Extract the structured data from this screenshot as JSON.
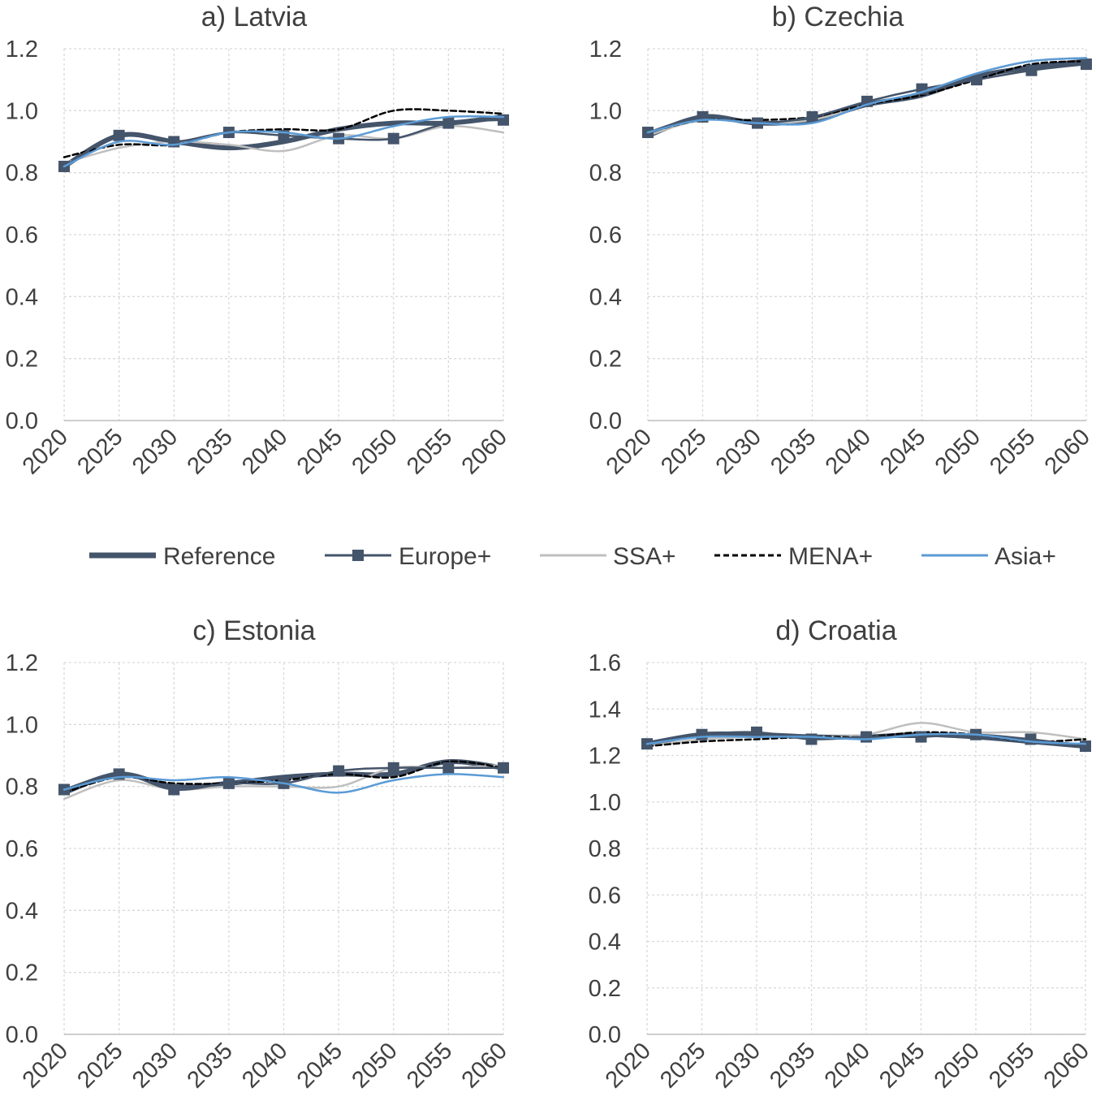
{
  "legend": [
    {
      "name": "Reference",
      "color": "#44546a",
      "style": "thick"
    },
    {
      "name": "Europe+",
      "color": "#44546a",
      "style": "square-marker"
    },
    {
      "name": "SSA+",
      "color": "#bfbfbf",
      "style": "solid"
    },
    {
      "name": "MENA+",
      "color": "#000000",
      "style": "dashed"
    },
    {
      "name": "Asia+",
      "color": "#5b9bd5",
      "style": "solid"
    }
  ],
  "chart_data": [
    {
      "type": "line",
      "title": "a) Latvia",
      "x": [
        "2020",
        "2025",
        "2030",
        "2035",
        "2040",
        "2045",
        "2050",
        "2055",
        "2060"
      ],
      "ylim": [
        0,
        1.2
      ],
      "yticks": [
        "0.0",
        "0.2",
        "0.4",
        "0.6",
        "0.8",
        "1.0",
        "1.2"
      ],
      "grid": true,
      "series": [
        {
          "name": "Reference",
          "values": [
            0.82,
            0.92,
            0.9,
            0.88,
            0.9,
            0.94,
            0.96,
            0.96,
            0.98
          ]
        },
        {
          "name": "Europe+",
          "values": [
            0.82,
            0.92,
            0.9,
            0.93,
            0.92,
            0.91,
            0.91,
            0.96,
            0.97
          ]
        },
        {
          "name": "SSA+",
          "values": [
            0.83,
            0.88,
            0.9,
            0.89,
            0.87,
            0.92,
            0.91,
            0.95,
            0.93
          ]
        },
        {
          "name": "MENA+",
          "values": [
            0.85,
            0.89,
            0.89,
            0.93,
            0.94,
            0.94,
            1.0,
            1.0,
            0.99
          ]
        },
        {
          "name": "Asia+",
          "values": [
            0.82,
            0.9,
            0.89,
            0.93,
            0.93,
            0.91,
            0.95,
            0.98,
            0.98
          ]
        }
      ]
    },
    {
      "type": "line",
      "title": "b) Czechia",
      "x": [
        "2020",
        "2025",
        "2030",
        "2035",
        "2040",
        "2045",
        "2050",
        "2055",
        "2060"
      ],
      "ylim": [
        0,
        1.2
      ],
      "yticks": [
        "0.0",
        "0.2",
        "0.4",
        "0.6",
        "0.8",
        "1.0",
        "1.2"
      ],
      "grid": true,
      "series": [
        {
          "name": "Reference",
          "values": [
            0.92,
            0.98,
            0.96,
            0.97,
            1.02,
            1.05,
            1.11,
            1.14,
            1.16
          ]
        },
        {
          "name": "Europe+",
          "values": [
            0.93,
            0.98,
            0.96,
            0.98,
            1.03,
            1.07,
            1.1,
            1.13,
            1.15
          ]
        },
        {
          "name": "SSA+",
          "values": [
            0.92,
            0.97,
            0.96,
            0.97,
            1.02,
            1.06,
            1.12,
            1.16,
            1.17
          ]
        },
        {
          "name": "MENA+",
          "values": [
            0.93,
            0.97,
            0.97,
            0.98,
            1.02,
            1.05,
            1.1,
            1.15,
            1.16
          ]
        },
        {
          "name": "Asia+",
          "values": [
            0.93,
            0.97,
            0.96,
            0.96,
            1.02,
            1.06,
            1.12,
            1.16,
            1.17
          ]
        }
      ]
    },
    {
      "type": "line",
      "title": "c) Estonia",
      "x": [
        "2020",
        "2025",
        "2030",
        "2035",
        "2040",
        "2045",
        "2050",
        "2055",
        "2060"
      ],
      "ylim": [
        0,
        1.2
      ],
      "yticks": [
        "0.0",
        "0.2",
        "0.4",
        "0.6",
        "0.8",
        "1.0",
        "1.2"
      ],
      "grid": true,
      "series": [
        {
          "name": "Reference",
          "values": [
            0.78,
            0.84,
            0.8,
            0.81,
            0.83,
            0.84,
            0.84,
            0.88,
            0.86
          ]
        },
        {
          "name": "Europe+",
          "values": [
            0.79,
            0.84,
            0.79,
            0.81,
            0.81,
            0.85,
            0.86,
            0.86,
            0.86
          ]
        },
        {
          "name": "SSA+",
          "values": [
            0.76,
            0.82,
            0.79,
            0.8,
            0.8,
            0.8,
            0.86,
            0.86,
            0.87
          ]
        },
        {
          "name": "MENA+",
          "values": [
            0.78,
            0.83,
            0.81,
            0.81,
            0.82,
            0.84,
            0.83,
            0.88,
            0.86
          ]
        },
        {
          "name": "Asia+",
          "values": [
            0.79,
            0.83,
            0.82,
            0.83,
            0.81,
            0.78,
            0.82,
            0.84,
            0.83
          ]
        }
      ]
    },
    {
      "type": "line",
      "title": "d) Croatia",
      "x": [
        "2020",
        "2025",
        "2030",
        "2035",
        "2040",
        "2045",
        "2050",
        "2055",
        "2060"
      ],
      "ylim": [
        0,
        1.6
      ],
      "yticks": [
        "0.0",
        "0.2",
        "0.4",
        "0.6",
        "0.8",
        "1.0",
        "1.2",
        "1.4",
        "1.6"
      ],
      "grid": true,
      "series": [
        {
          "name": "Reference",
          "values": [
            1.25,
            1.29,
            1.29,
            1.28,
            1.28,
            1.29,
            1.28,
            1.26,
            1.24
          ]
        },
        {
          "name": "Europe+",
          "values": [
            1.25,
            1.29,
            1.3,
            1.27,
            1.28,
            1.28,
            1.29,
            1.27,
            1.24
          ]
        },
        {
          "name": "SSA+",
          "values": [
            1.24,
            1.27,
            1.28,
            1.28,
            1.29,
            1.34,
            1.3,
            1.3,
            1.27
          ]
        },
        {
          "name": "MENA+",
          "values": [
            1.24,
            1.26,
            1.27,
            1.28,
            1.28,
            1.3,
            1.29,
            1.26,
            1.27
          ]
        },
        {
          "name": "Asia+",
          "values": [
            1.25,
            1.28,
            1.28,
            1.28,
            1.27,
            1.29,
            1.29,
            1.26,
            1.25
          ]
        }
      ]
    }
  ]
}
